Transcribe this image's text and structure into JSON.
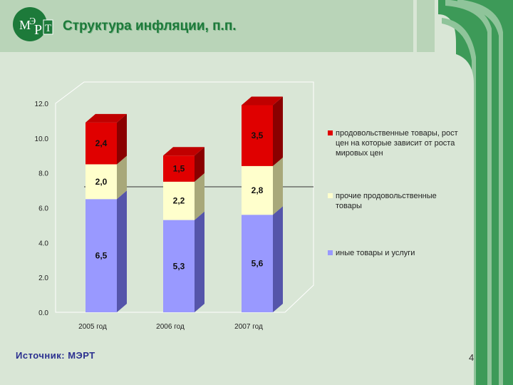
{
  "header": {
    "title": "Структура инфляции, п.п.",
    "logo_text": "МЭРТ"
  },
  "footer": {
    "source": "Источник: МЭРТ",
    "page_number": "4"
  },
  "colors": {
    "food": "#e00000",
    "other_food": "#ffffcc",
    "other_goods": "#9999ff",
    "accent_green": "#1d7a3a"
  },
  "chart_data": {
    "type": "bar",
    "stacked": true,
    "categories": [
      "2005 год",
      "2006 год",
      "2007 год"
    ],
    "series": [
      {
        "name": "иные товары и услуги",
        "values": [
          6.5,
          5.3,
          5.6
        ],
        "labels": [
          "6,5",
          "5,3",
          "5,6"
        ],
        "color": "#9999ff"
      },
      {
        "name": "прочие продовольственные товары",
        "values": [
          2.0,
          2.2,
          2.8
        ],
        "labels": [
          "2,0",
          "2,2",
          "2,8"
        ],
        "color": "#ffffcc"
      },
      {
        "name": "продовольственные товары, рост цен на которые зависит от роста мировых цен",
        "values": [
          2.4,
          1.5,
          3.5
        ],
        "labels": [
          "2,4",
          "1,5",
          "3,5"
        ],
        "color": "#e00000"
      }
    ],
    "ylim": [
      0,
      12
    ],
    "yticks": [
      "0.0",
      "2.0",
      "4.0",
      "6.0",
      "8.0",
      "10.0",
      "12.0"
    ],
    "legend_position": "right",
    "grid": false
  }
}
